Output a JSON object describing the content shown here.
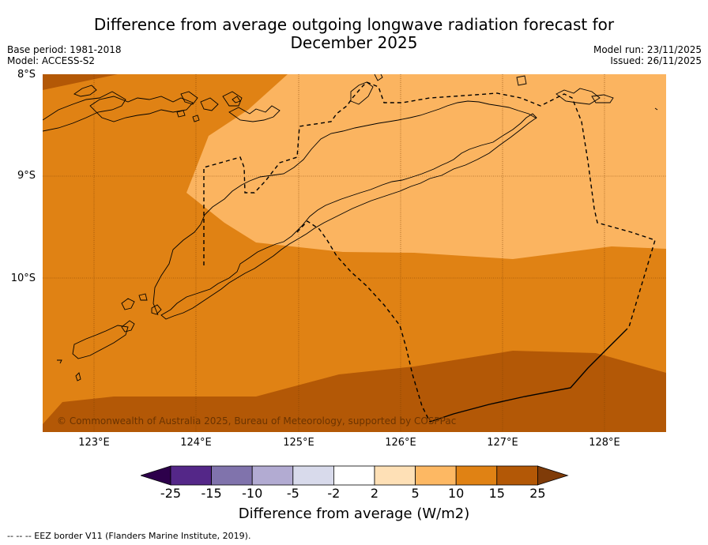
{
  "title": {
    "line1": "Difference from average outgoing longwave radiation forecast for",
    "line2": "December 2025"
  },
  "meta": {
    "base_period": "Base period: 1981-2018",
    "model": "Model: ACCESS-S2",
    "model_run": "Model run: 23/11/2025",
    "issued": "Issued: 26/11/2025"
  },
  "map": {
    "lat_labels": [
      "8°S",
      "9°S",
      "10°S"
    ],
    "lon_labels": [
      "123°E",
      "124°E",
      "125°E",
      "126°E",
      "127°E",
      "128°E"
    ],
    "copyright": "© Commonwealth of Australia 2025, Bureau of Meteorology, supported by COSPPac",
    "colors": {
      "c5_10": "#fbb460",
      "c10_15": "#e08214",
      "c15_25": "#b35806",
      "outline": "#000000"
    }
  },
  "colorbar": {
    "ticks": [
      "-25",
      "-15",
      "-10",
      "-5",
      "-2",
      "2",
      "5",
      "10",
      "15",
      "25"
    ],
    "colors": [
      "#2d004b",
      "#542788",
      "#8073ac",
      "#b2abd2",
      "#d8daeb",
      "#ffffff",
      "#fee0b6",
      "#fdb863",
      "#e08214",
      "#b35806",
      "#7f3b08"
    ],
    "label": "Difference from average (W/m2)"
  },
  "footnote": "--  --  -- EEZ border V11 (Flanders Marine Institute, 2019)."
}
